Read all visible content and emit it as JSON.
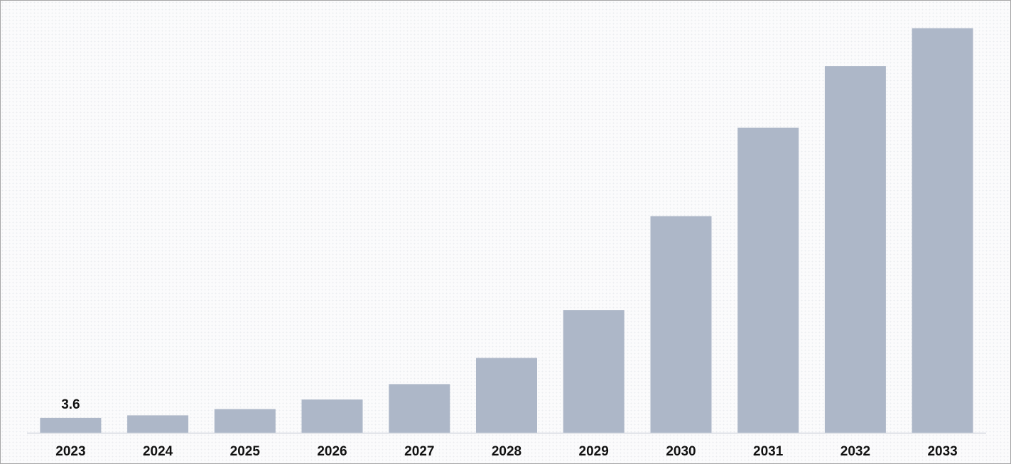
{
  "chart_data": {
    "type": "bar",
    "title": "",
    "xlabel": "",
    "ylabel": "",
    "categories": [
      "2023",
      "2024",
      "2025",
      "2026",
      "2027",
      "2028",
      "2029",
      "2030",
      "2031",
      "2032",
      "2033"
    ],
    "values": [
      3.6,
      4.2,
      5.7,
      8.0,
      11.7,
      18.0,
      29.5,
      52.1,
      73.4,
      88.2,
      97.3
    ],
    "data_labels": [
      {
        "category": "2023",
        "text": "3.6"
      }
    ],
    "ylim": [
      0,
      100
    ],
    "grid": false,
    "legend": "none",
    "bar_color": "#adb7c8"
  }
}
